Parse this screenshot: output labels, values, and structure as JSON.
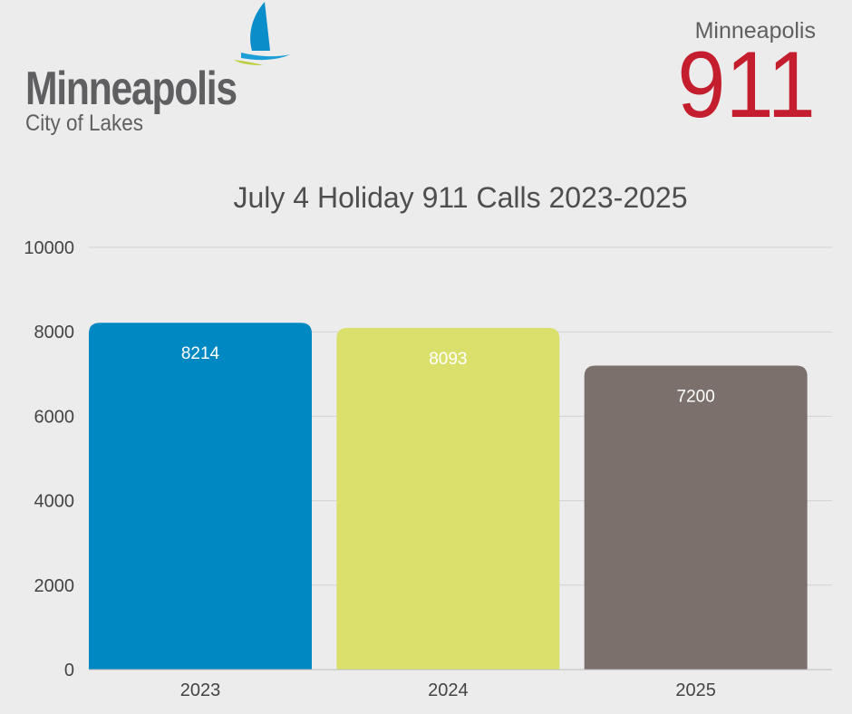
{
  "header": {
    "left_logo": {
      "name": "Minneapolis",
      "tagline": "City of Lakes"
    },
    "right_logo": {
      "city": "Minneapolis",
      "number": "911"
    }
  },
  "chart_data": {
    "type": "bar",
    "title": "July 4 Holiday 911 Calls 2023-2025",
    "xlabel": "",
    "ylabel": "",
    "categories": [
      "2023",
      "2024",
      "2025"
    ],
    "values": [
      8214,
      8093,
      7200
    ],
    "data_labels": [
      "8214",
      "8093",
      "7200"
    ],
    "bar_colors": [
      "#0088c2",
      "#dbe06c",
      "#7c706c"
    ],
    "ylim": [
      0,
      10000
    ],
    "yticks": [
      0,
      2000,
      4000,
      6000,
      8000,
      10000
    ],
    "grid": true,
    "legend": "none"
  },
  "colors": {
    "background": "#ececec",
    "brand_red": "#c41e2e",
    "logo_gray": "#5f5f61"
  }
}
